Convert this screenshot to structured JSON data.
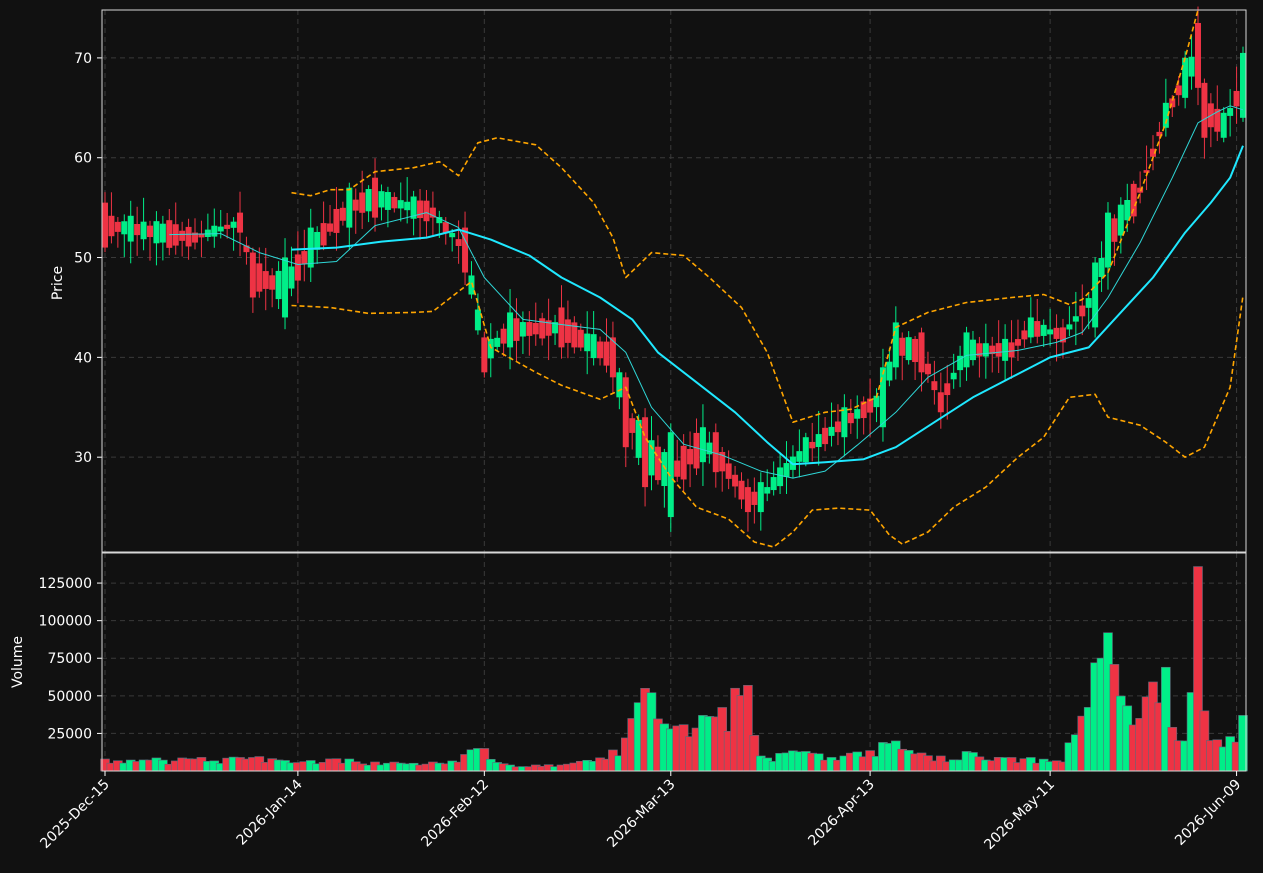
{
  "chart_data": [
    {
      "type": "candlestick",
      "panel": "price",
      "ylabel": "Price",
      "ylim": [
        20.5,
        74.8
      ],
      "yticks": [
        30,
        40,
        50,
        60,
        70
      ],
      "grid": true,
      "date_range": [
        "2025-12-15",
        "2026-06-10"
      ],
      "xtick_labels": [
        {
          "date": "2025-12-15",
          "label": "2025-Dec-15"
        },
        {
          "date": "2026-01-14",
          "label": "2026-Jan-14"
        },
        {
          "date": "2026-02-12",
          "label": "2026-Feb-12"
        },
        {
          "date": "2026-03-13",
          "label": "2026-Mar-13"
        },
        {
          "date": "2026-04-13",
          "label": "2026-Apr-13"
        },
        {
          "date": "2026-05-11",
          "label": "2026-May-11"
        },
        {
          "date": "2026-06-09",
          "label": "2026-Jun-09"
        }
      ],
      "anchors": [
        {
          "date": "2025-12-15",
          "open": 55.5,
          "close": 51.0,
          "volume": 8000
        },
        {
          "date": "2025-12-29",
          "open": 52.5,
          "close": 51.5,
          "volume": 8000
        },
        {
          "date": "2026-01-05",
          "open": 54.5,
          "close": 52.5,
          "volume": 9000
        },
        {
          "date": "2026-01-07",
          "open": 50.5,
          "close": 46.0,
          "volume": 9000
        },
        {
          "date": "2026-01-12",
          "open": 44.0,
          "close": 50.0,
          "volume": 7000
        },
        {
          "date": "2026-01-16",
          "open": 49.0,
          "close": 53.0,
          "volume": 7000
        },
        {
          "date": "2026-01-22",
          "open": 53.0,
          "close": 57.0,
          "volume": 8000
        },
        {
          "date": "2026-01-26",
          "open": 58.0,
          "close": 54.0,
          "volume": 6000
        },
        {
          "date": "2026-02-04",
          "open": 55.0,
          "close": 54.0,
          "volume": 6000
        },
        {
          "date": "2026-02-09",
          "open": 53.0,
          "close": 48.5,
          "volume": 11000
        },
        {
          "date": "2026-02-12",
          "open": 42.0,
          "close": 38.5,
          "volume": 15000
        },
        {
          "date": "2026-02-16",
          "open": 41.0,
          "close": 44.5,
          "volume": 4000
        },
        {
          "date": "2026-02-24",
          "open": 45.0,
          "close": 41.0,
          "volume": 4000
        },
        {
          "date": "2026-03-04",
          "open": 42.0,
          "close": 38.0,
          "volume": 14000
        },
        {
          "date": "2026-03-06",
          "open": 38.0,
          "close": 31.0,
          "volume": 22000
        },
        {
          "date": "2026-03-09",
          "open": 34.0,
          "close": 27.0,
          "volume": 55000
        },
        {
          "date": "2026-03-13",
          "open": 24.0,
          "close": 32.5,
          "volume": 28000
        },
        {
          "date": "2026-03-18",
          "open": 29.5,
          "close": 33.0,
          "volume": 37000
        },
        {
          "date": "2026-03-20",
          "open": 32.5,
          "close": 28.5,
          "volume": 36000
        },
        {
          "date": "2026-03-25",
          "open": 27.0,
          "close": 24.5,
          "volume": 57000
        },
        {
          "date": "2026-03-27",
          "open": 24.5,
          "close": 27.5,
          "volume": 10000
        },
        {
          "date": "2026-04-03",
          "open": 29.5,
          "close": 32.0,
          "volume": 13000
        },
        {
          "date": "2026-04-09",
          "open": 32.0,
          "close": 35.0,
          "volume": 10000
        },
        {
          "date": "2026-04-15",
          "open": 33.0,
          "close": 39.0,
          "volume": 19000
        },
        {
          "date": "2026-04-17",
          "open": 39.0,
          "close": 43.5,
          "volume": 20000
        },
        {
          "date": "2026-04-21",
          "open": 42.5,
          "close": 38.5,
          "volume": 12000
        },
        {
          "date": "2026-04-24",
          "open": 36.5,
          "close": 34.5,
          "volume": 10000
        },
        {
          "date": "2026-04-28",
          "open": 39.0,
          "close": 42.5,
          "volume": 13000
        },
        {
          "date": "2026-05-05",
          "open": 41.5,
          "close": 40.0,
          "volume": 9000
        },
        {
          "date": "2026-05-08",
          "open": 42.0,
          "close": 44.0,
          "volume": 9000
        },
        {
          "date": "2026-05-13",
          "open": 43.0,
          "close": 41.5,
          "volume": 6000
        },
        {
          "date": "2026-05-18",
          "open": 43.0,
          "close": 49.5,
          "volume": 72000
        },
        {
          "date": "2026-05-20",
          "open": 49.0,
          "close": 54.5,
          "volume": 92000
        },
        {
          "date": "2026-05-25",
          "open": 57.0,
          "close": 56.5,
          "volume": 35000
        },
        {
          "date": "2026-05-29",
          "open": 63.0,
          "close": 65.5,
          "volume": 69000
        },
        {
          "date": "2026-06-01",
          "open": 66.0,
          "close": 70.0,
          "volume": 20000
        },
        {
          "date": "2026-06-03",
          "open": 73.5,
          "close": 67.0,
          "volume": 136000
        },
        {
          "date": "2026-06-04",
          "open": 67.5,
          "close": 62.0,
          "volume": 40000
        },
        {
          "date": "2026-06-07",
          "open": 62.0,
          "close": 64.5,
          "volume": 16000
        },
        {
          "date": "2026-06-10",
          "open": 64.0,
          "close": 70.5,
          "volume": 37000
        }
      ],
      "indicators": [
        {
          "kind": "moving-average",
          "color": "#2fd7d7",
          "points": [
            {
              "date": "2025-12-25",
              "value": 52.3
            },
            {
              "date": "2026-01-02",
              "value": 52.4
            },
            {
              "date": "2026-01-08",
              "value": 50.5
            },
            {
              "date": "2026-01-14",
              "value": 49.3
            },
            {
              "date": "2026-01-20",
              "value": 49.6
            },
            {
              "date": "2026-01-26",
              "value": 53.2
            },
            {
              "date": "2026-02-03",
              "value": 54.5
            },
            {
              "date": "2026-02-08",
              "value": 53.0
            },
            {
              "date": "2026-02-12",
              "value": 48.0
            },
            {
              "date": "2026-02-18",
              "value": 43.8
            },
            {
              "date": "2026-02-25",
              "value": 43.2
            },
            {
              "date": "2026-03-02",
              "value": 42.8
            },
            {
              "date": "2026-03-06",
              "value": 40.5
            },
            {
              "date": "2026-03-10",
              "value": 35.0
            },
            {
              "date": "2026-03-15",
              "value": 31.3
            },
            {
              "date": "2026-03-21",
              "value": 30.2
            },
            {
              "date": "2026-03-27",
              "value": 28.6
            },
            {
              "date": "2026-04-01",
              "value": 27.9
            },
            {
              "date": "2026-04-06",
              "value": 28.6
            },
            {
              "date": "2026-04-11",
              "value": 31.2
            },
            {
              "date": "2026-04-17",
              "value": 34.5
            },
            {
              "date": "2026-04-22",
              "value": 38.0
            },
            {
              "date": "2026-04-28",
              "value": 40.2
            },
            {
              "date": "2026-05-06",
              "value": 40.7
            },
            {
              "date": "2026-05-12",
              "value": 41.5
            },
            {
              "date": "2026-05-16",
              "value": 42.5
            },
            {
              "date": "2026-05-20",
              "value": 46.0
            },
            {
              "date": "2026-05-25",
              "value": 51.5
            },
            {
              "date": "2026-05-30",
              "value": 58.0
            },
            {
              "date": "2026-06-03",
              "value": 63.5
            },
            {
              "date": "2026-06-06",
              "value": 64.6
            },
            {
              "date": "2026-06-08",
              "value": 65.2
            },
            {
              "date": "2026-06-10",
              "value": 64.8
            }
          ]
        },
        {
          "kind": "moving-average",
          "color": "#1fe8ff",
          "points": [
            {
              "date": "2026-01-13",
              "value": 50.8
            },
            {
              "date": "2026-01-20",
              "value": 51.0
            },
            {
              "date": "2026-01-27",
              "value": 51.6
            },
            {
              "date": "2026-02-03",
              "value": 52.0
            },
            {
              "date": "2026-02-08",
              "value": 52.8
            },
            {
              "date": "2026-02-13",
              "value": 51.8
            },
            {
              "date": "2026-02-19",
              "value": 50.2
            },
            {
              "date": "2026-02-24",
              "value": 48.0
            },
            {
              "date": "2026-03-02",
              "value": 46.0
            },
            {
              "date": "2026-03-07",
              "value": 43.8
            },
            {
              "date": "2026-03-11",
              "value": 40.5
            },
            {
              "date": "2026-03-17",
              "value": 37.5
            },
            {
              "date": "2026-03-23",
              "value": 34.5
            },
            {
              "date": "2026-03-28",
              "value": 31.5
            },
            {
              "date": "2026-04-01",
              "value": 29.3
            },
            {
              "date": "2026-04-06",
              "value": 29.5
            },
            {
              "date": "2026-04-12",
              "value": 29.8
            },
            {
              "date": "2026-04-17",
              "value": 31.0
            },
            {
              "date": "2026-04-23",
              "value": 33.5
            },
            {
              "date": "2026-04-29",
              "value": 36.0
            },
            {
              "date": "2026-05-05",
              "value": 38.0
            },
            {
              "date": "2026-05-11",
              "value": 40.0
            },
            {
              "date": "2026-05-17",
              "value": 41.0
            },
            {
              "date": "2026-05-22",
              "value": 44.5
            },
            {
              "date": "2026-05-27",
              "value": 48.0
            },
            {
              "date": "2026-06-01",
              "value": 52.5
            },
            {
              "date": "2026-06-05",
              "value": 55.5
            },
            {
              "date": "2026-06-08",
              "value": 58.0
            },
            {
              "date": "2026-06-10",
              "value": 61.2
            }
          ]
        },
        {
          "kind": "upper-band",
          "color": "#ffa500",
          "dashed": true,
          "points": [
            {
              "date": "2026-01-13",
              "value": 56.5
            },
            {
              "date": "2026-01-16",
              "value": 56.2
            },
            {
              "date": "2026-01-19",
              "value": 56.8
            },
            {
              "date": "2026-01-22",
              "value": 56.8
            },
            {
              "date": "2026-01-26",
              "value": 58.6
            },
            {
              "date": "2026-02-01",
              "value": 59.0
            },
            {
              "date": "2026-02-05",
              "value": 59.6
            },
            {
              "date": "2026-02-08",
              "value": 58.2
            },
            {
              "date": "2026-02-11",
              "value": 61.5
            },
            {
              "date": "2026-02-14",
              "value": 62.0
            },
            {
              "date": "2026-02-20",
              "value": 61.3
            },
            {
              "date": "2026-02-24",
              "value": 59.0
            },
            {
              "date": "2026-03-01",
              "value": 55.5
            },
            {
              "date": "2026-03-04",
              "value": 52.0
            },
            {
              "date": "2026-03-06",
              "value": 48.0
            },
            {
              "date": "2026-03-10",
              "value": 50.5
            },
            {
              "date": "2026-03-15",
              "value": 50.2
            },
            {
              "date": "2026-03-19",
              "value": 48.0
            },
            {
              "date": "2026-03-24",
              "value": 45.0
            },
            {
              "date": "2026-03-28",
              "value": 40.5
            },
            {
              "date": "2026-04-01",
              "value": 33.5
            },
            {
              "date": "2026-04-06",
              "value": 34.5
            },
            {
              "date": "2026-04-10",
              "value": 34.8
            },
            {
              "date": "2026-04-14",
              "value": 36.0
            },
            {
              "date": "2026-04-17",
              "value": 43.0
            },
            {
              "date": "2026-04-22",
              "value": 44.5
            },
            {
              "date": "2026-04-28",
              "value": 45.5
            },
            {
              "date": "2026-05-05",
              "value": 46.0
            },
            {
              "date": "2026-05-10",
              "value": 46.3
            },
            {
              "date": "2026-05-14",
              "value": 45.3
            },
            {
              "date": "2026-05-16",
              "value": 45.8
            },
            {
              "date": "2026-05-20",
              "value": 48.5
            },
            {
              "date": "2026-05-25",
              "value": 56.5
            },
            {
              "date": "2026-05-29",
              "value": 63.5
            },
            {
              "date": "2026-06-01",
              "value": 70.0
            },
            {
              "date": "2026-06-03",
              "value": 74.8
            }
          ]
        },
        {
          "kind": "lower-band",
          "color": "#ffa500",
          "dashed": true,
          "points": [
            {
              "date": "2026-01-13",
              "value": 45.2
            },
            {
              "date": "2026-01-19",
              "value": 45.0
            },
            {
              "date": "2026-01-25",
              "value": 44.4
            },
            {
              "date": "2026-02-01",
              "value": 44.5
            },
            {
              "date": "2026-02-04",
              "value": 44.6
            },
            {
              "date": "2026-02-10",
              "value": 47.6
            },
            {
              "date": "2026-02-13",
              "value": 41.0
            },
            {
              "date": "2026-02-20",
              "value": 38.5
            },
            {
              "date": "2026-02-24",
              "value": 37.2
            },
            {
              "date": "2026-03-02",
              "value": 35.8
            },
            {
              "date": "2026-03-06",
              "value": 37.0
            },
            {
              "date": "2026-03-09",
              "value": 32.0
            },
            {
              "date": "2026-03-13",
              "value": 28.0
            },
            {
              "date": "2026-03-17",
              "value": 25.0
            },
            {
              "date": "2026-03-22",
              "value": 23.8
            },
            {
              "date": "2026-03-26",
              "value": 21.5
            },
            {
              "date": "2026-03-29",
              "value": 21.0
            },
            {
              "date": "2026-04-01",
              "value": 22.5
            },
            {
              "date": "2026-04-04",
              "value": 24.7
            },
            {
              "date": "2026-04-08",
              "value": 24.9
            },
            {
              "date": "2026-04-13",
              "value": 24.7
            },
            {
              "date": "2026-04-16",
              "value": 22.2
            },
            {
              "date": "2026-04-18",
              "value": 21.3
            },
            {
              "date": "2026-04-22",
              "value": 22.5
            },
            {
              "date": "2026-04-26",
              "value": 25.0
            },
            {
              "date": "2026-05-01",
              "value": 27.0
            },
            {
              "date": "2026-05-06",
              "value": 30.0
            },
            {
              "date": "2026-05-10",
              "value": 32.0
            },
            {
              "date": "2026-05-14",
              "value": 36.0
            },
            {
              "date": "2026-05-18",
              "value": 36.3
            },
            {
              "date": "2026-05-20",
              "value": 34.0
            },
            {
              "date": "2026-05-25",
              "value": 33.2
            },
            {
              "date": "2026-05-29",
              "value": 31.5
            },
            {
              "date": "2026-06-01",
              "value": 30.0
            },
            {
              "date": "2026-06-04",
              "value": 31.0
            },
            {
              "date": "2026-06-08",
              "value": 37.0
            },
            {
              "date": "2026-06-10",
              "value": 46.2
            }
          ]
        }
      ],
      "colors": {
        "up": "#00ee88",
        "down": "#ee3344",
        "background": "#111111",
        "text": "#ffffff"
      }
    },
    {
      "type": "bar",
      "panel": "volume",
      "ylabel": "Volume",
      "ylim": [
        0,
        145000
      ],
      "yticks": [
        25000,
        50000,
        75000,
        100000,
        125000
      ],
      "grid": true
    }
  ]
}
